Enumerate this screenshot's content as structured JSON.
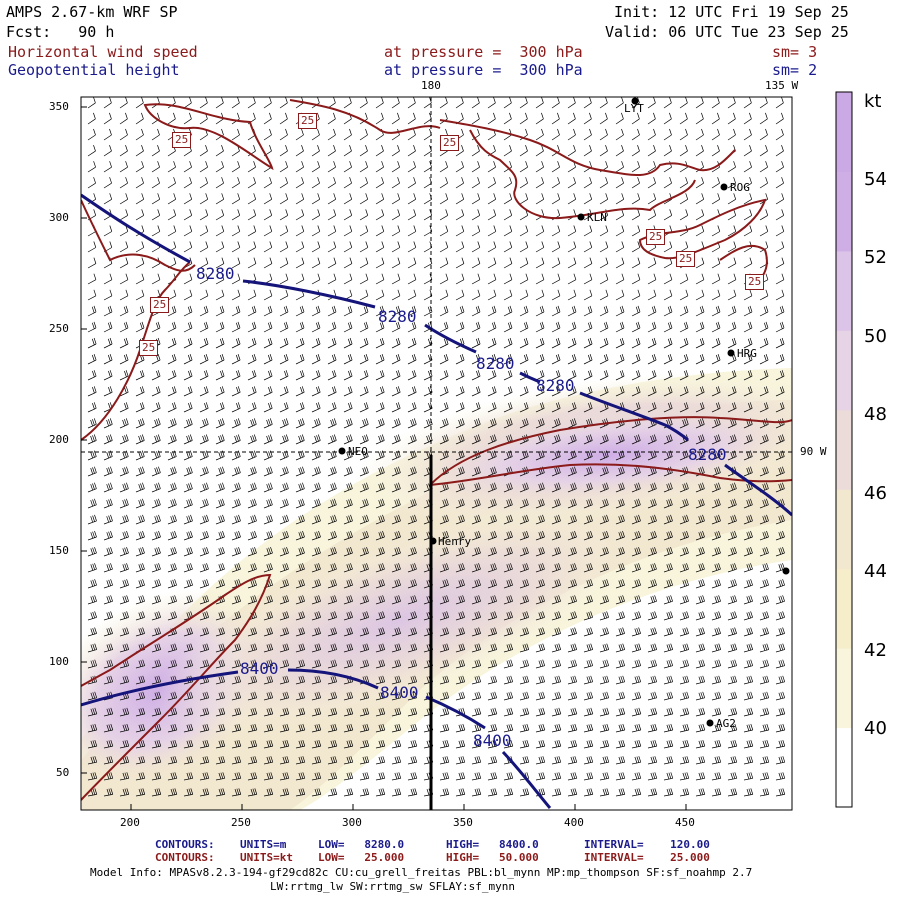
{
  "header": {
    "model": "AMPS 2.67-km WRF SP",
    "forecast": "Fcst:   90 h",
    "init": "Init: 12 UTC Fri 19 Sep 25",
    "valid": "Valid: 06 UTC Tue 23 Sep 25",
    "field1_name": "Horizontal wind speed",
    "field1_level": "at pressure =  300 hPa",
    "field1_sm": "sm= 3",
    "field2_name": "Geopotential height",
    "field2_level": "at pressure =  300 hPa",
    "field2_sm": "sm= 2"
  },
  "map": {
    "meridian_labels": [
      "180",
      "135 W",
      "90 W"
    ],
    "x_axis_ticks": [
      "200",
      "250",
      "300",
      "350",
      "400",
      "450"
    ],
    "y_axis_ticks": [
      "50",
      "100",
      "150",
      "200",
      "250",
      "300",
      "350"
    ],
    "stations": [
      "LYT",
      "ROG",
      "KLN",
      "HRG",
      "NEO",
      "Henry",
      "AG2"
    ],
    "height_contour_labels": [
      "8280",
      "8280",
      "8280",
      "8280",
      "8280",
      "8400",
      "8400",
      "8400"
    ],
    "speed_contour_labels": [
      "25",
      "25",
      "25",
      "25",
      "25",
      "25",
      "25",
      "25"
    ]
  },
  "colorbar": {
    "unit": "kt",
    "labels": [
      "54",
      "52",
      "50",
      "48",
      "46",
      "44",
      "42",
      "40"
    ],
    "colors": [
      "#ffffff",
      "#f8f5dc",
      "#f6eecb",
      "#f2e7cf",
      "#ecdcd9",
      "#e6d3e6",
      "#dcc3e8",
      "#cfaee6",
      "#cba9e4"
    ]
  },
  "footer": {
    "contour1_label": "CONTOURS:",
    "contour1_units": "UNITS=m",
    "contour1_low": "LOW=   8280.0",
    "contour1_high": "HIGH=   8400.0",
    "contour1_interval": "INTERVAL=    120.00",
    "contour2_label": "CONTOURS:",
    "contour2_units": "UNITS=kt",
    "contour2_low": "LOW=   25.000",
    "contour2_high": "HIGH=   50.000",
    "contour2_interval": "INTERVAL=    25.000",
    "model_info": "Model Info: MPASv8.2.3-194-gf29cd82c CU:cu_grell_freitas PBL:bl_mynn MP:mp_thompson SF:sf_noahmp 2.7",
    "model_info2": "LW:rrtmg_lw SW:rrtmg_sw SFLAY:sf_mynn"
  }
}
